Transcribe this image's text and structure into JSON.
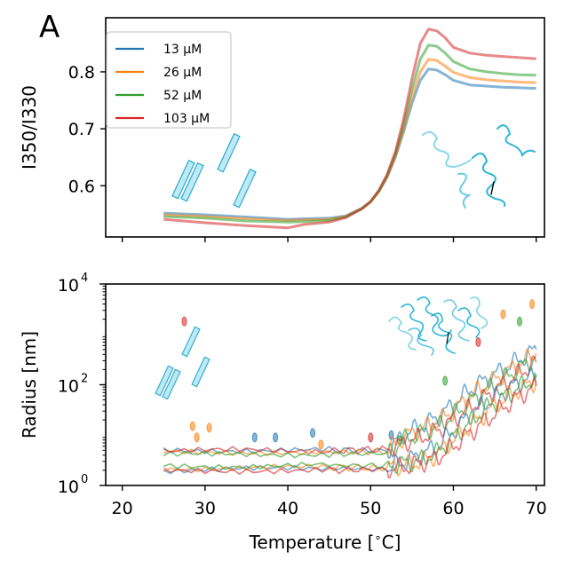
{
  "figure": {
    "panel_label": "A"
  },
  "chart_data": [
    {
      "type": "line",
      "title": "",
      "xlabel": "",
      "ylabel": "I350/I330",
      "xlim": [
        18,
        71
      ],
      "ylim": [
        0.51,
        0.895
      ],
      "x_ticks": [
        20,
        30,
        40,
        50,
        60,
        70
      ],
      "x_tick_labels_visible": false,
      "y_ticks": [
        0.6,
        0.7,
        0.8
      ],
      "y_tick_labels": [
        "0.6",
        "0.7",
        "0.8"
      ],
      "legend": {
        "placement": "top-left",
        "entries": [
          "13 µM",
          "26 µM",
          "52 µM",
          "103 µM"
        ]
      },
      "grid": false,
      "series": [
        {
          "name": "13 µM",
          "color": "#1f77b4",
          "x": [
            25,
            30,
            35,
            40,
            42,
            45,
            47,
            49,
            50,
            51,
            52,
            53,
            54,
            55,
            56,
            57,
            58,
            59,
            60,
            62,
            64,
            66,
            68,
            70
          ],
          "y": [
            0.552,
            0.549,
            0.545,
            0.541,
            0.542,
            0.543,
            0.547,
            0.561,
            0.572,
            0.59,
            0.615,
            0.65,
            0.695,
            0.745,
            0.785,
            0.805,
            0.803,
            0.795,
            0.785,
            0.777,
            0.775,
            0.773,
            0.772,
            0.771
          ]
        },
        {
          "name": "26 µM",
          "color": "#ff7f0e",
          "x": [
            25,
            30,
            35,
            40,
            42,
            45,
            47,
            49,
            50,
            51,
            52,
            53,
            54,
            55,
            56,
            57,
            58,
            59,
            60,
            62,
            64,
            66,
            68,
            70
          ],
          "y": [
            0.549,
            0.546,
            0.542,
            0.539,
            0.54,
            0.541,
            0.546,
            0.56,
            0.572,
            0.59,
            0.616,
            0.652,
            0.7,
            0.756,
            0.8,
            0.822,
            0.82,
            0.81,
            0.799,
            0.79,
            0.786,
            0.784,
            0.782,
            0.781
          ]
        },
        {
          "name": "52 µM",
          "color": "#2ca02c",
          "x": [
            25,
            30,
            35,
            40,
            42,
            45,
            47,
            49,
            50,
            51,
            52,
            53,
            54,
            55,
            56,
            57,
            58,
            59,
            60,
            62,
            64,
            66,
            68,
            70
          ],
          "y": [
            0.546,
            0.543,
            0.538,
            0.536,
            0.537,
            0.539,
            0.545,
            0.56,
            0.572,
            0.591,
            0.618,
            0.656,
            0.708,
            0.77,
            0.822,
            0.847,
            0.845,
            0.833,
            0.818,
            0.805,
            0.8,
            0.797,
            0.795,
            0.794
          ]
        },
        {
          "name": "103 µM",
          "color": "#d62728",
          "x": [
            25,
            30,
            35,
            40,
            42,
            45,
            47,
            49,
            50,
            51,
            52,
            53,
            54,
            55,
            56,
            57,
            58,
            59,
            60,
            62,
            64,
            66,
            68,
            70
          ],
          "y": [
            0.541,
            0.535,
            0.53,
            0.526,
            0.532,
            0.536,
            0.544,
            0.56,
            0.572,
            0.592,
            0.62,
            0.66,
            0.718,
            0.788,
            0.85,
            0.875,
            0.872,
            0.86,
            0.843,
            0.833,
            0.829,
            0.827,
            0.825,
            0.823
          ]
        }
      ]
    },
    {
      "type": "line",
      "title": "",
      "xlabel": "Temperature [$^\\circ$C]",
      "xlabel_parts": [
        "Temperature [",
        "∘",
        "C]"
      ],
      "ylabel": "Radius [nm]",
      "xlim": [
        18,
        71
      ],
      "ylim": [
        1,
        10000
      ],
      "y_scale": "log",
      "x_ticks": [
        20,
        30,
        40,
        50,
        60,
        70
      ],
      "x_tick_labels": [
        "20",
        "30",
        "40",
        "50",
        "60",
        "70"
      ],
      "y_ticks": [
        1,
        100,
        10000
      ],
      "y_tick_labels": [
        {
          "base": "10",
          "exp": "0"
        },
        {
          "base": "10",
          "exp": "2"
        },
        {
          "base": "10",
          "exp": "4"
        }
      ],
      "grid": false,
      "series_colors": [
        "#1f77b4",
        "#ff7f0e",
        "#2ca02c",
        "#d62728"
      ],
      "trace_x": [
        25,
        35,
        45,
        52,
        54,
        56,
        58,
        60,
        62,
        64,
        66,
        68,
        70
      ],
      "traces": [
        {
          "color": "#1f77b4",
          "y": [
            5,
            5,
            5,
            5,
            10,
            15,
            22,
            40,
            80,
            130,
            200,
            320,
            500
          ]
        },
        {
          "color": "#ff7f0e",
          "y": [
            4.5,
            4.6,
            4.6,
            4.8,
            9,
            13,
            18,
            30,
            60,
            100,
            160,
            260,
            420
          ]
        },
        {
          "color": "#2ca02c",
          "y": [
            4,
            4.2,
            4.2,
            4.3,
            8,
            11,
            15,
            25,
            45,
            80,
            130,
            210,
            350
          ]
        },
        {
          "color": "#d62728",
          "y": [
            4.8,
            5,
            4.9,
            5.2,
            7,
            9,
            12,
            20,
            35,
            60,
            100,
            170,
            280
          ]
        },
        {
          "color": "#1f77b4",
          "y": [
            2,
            2.1,
            2.2,
            2.1,
            3,
            4,
            6,
            12,
            25,
            45,
            70,
            110,
            160
          ]
        },
        {
          "color": "#ff7f0e",
          "y": [
            2.2,
            2.2,
            2.3,
            2.2,
            2.5,
            3,
            4,
            8,
            15,
            28,
            50,
            80,
            120
          ]
        },
        {
          "color": "#2ca02c",
          "y": [
            2.5,
            2.4,
            2.5,
            2.5,
            2.7,
            3.2,
            4.5,
            9,
            18,
            35,
            55,
            90,
            140
          ]
        },
        {
          "color": "#d62728",
          "y": [
            1.9,
            2,
            2,
            2.1,
            2.3,
            2.8,
            3.5,
            6,
            11,
            20,
            35,
            60,
            95
          ]
        }
      ],
      "blobs": [
        {
          "color": "#1f77b4",
          "x": 36,
          "y": 9
        },
        {
          "color": "#1f77b4",
          "x": 38.5,
          "y": 9
        },
        {
          "color": "#1f77b4",
          "x": 43,
          "y": 11
        },
        {
          "color": "#ff7f0e",
          "x": 28.5,
          "y": 15
        },
        {
          "color": "#ff7f0e",
          "x": 30.5,
          "y": 14
        },
        {
          "color": "#ff7f0e",
          "x": 29,
          "y": 9
        },
        {
          "color": "#ff7f0e",
          "x": 44,
          "y": 6.5
        },
        {
          "color": "#d62728",
          "x": 27.5,
          "y": 1800
        },
        {
          "color": "#2ca02c",
          "x": 53.5,
          "y": 8
        },
        {
          "color": "#d62728",
          "x": 50,
          "y": 9
        },
        {
          "color": "#1f77b4",
          "x": 52.5,
          "y": 10
        },
        {
          "color": "#ff7f0e",
          "x": 66,
          "y": 2500
        },
        {
          "color": "#2ca02c",
          "x": 68,
          "y": 1800
        },
        {
          "color": "#ff7f0e",
          "x": 69.5,
          "y": 4000
        },
        {
          "color": "#d62728",
          "x": 63,
          "y": 700
        },
        {
          "color": "#2ca02c",
          "x": 59,
          "y": 120
        }
      ]
    }
  ],
  "illustrations": {
    "folded_rods_icon": "folded-rods-icon",
    "unfolded_coils_icon": "unfolded-coils-icon",
    "aggregate_icon": "aggregate-icon"
  }
}
